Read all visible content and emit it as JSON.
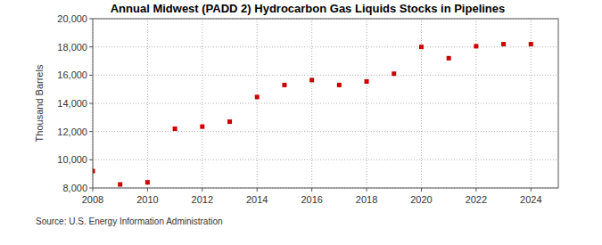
{
  "chart_data": {
    "type": "scatter",
    "title": "Annual Midwest (PADD 2) Hydrocarbon Gas Liquids Stocks in Pipelines",
    "y_label": "Thousand Barrels",
    "source": "Source: U.S. Energy Information Administration",
    "x": [
      2008,
      2009,
      2010,
      2011,
      2012,
      2013,
      2014,
      2015,
      2016,
      2017,
      2018,
      2019,
      2020,
      2021,
      2022,
      2023,
      2024
    ],
    "values": [
      9200,
      8250,
      8400,
      12200,
      12350,
      12700,
      14450,
      15300,
      15650,
      15300,
      15550,
      16100,
      18000,
      17200,
      18050,
      18200,
      18200
    ],
    "color": "#cc0000",
    "marker": "square",
    "xlim": [
      2008,
      2025
    ],
    "xticks": [
      2008,
      2010,
      2012,
      2014,
      2016,
      2018,
      2020,
      2022,
      2024
    ],
    "ylim": [
      8000,
      20000
    ],
    "yticks": [
      {
        "value": 8000,
        "label": "8,000"
      },
      {
        "value": 10000,
        "label": "10,000"
      },
      {
        "value": 12000,
        "label": "12,000"
      },
      {
        "value": 14000,
        "label": "14,000"
      },
      {
        "value": 16000,
        "label": "16,000"
      },
      {
        "value": 18000,
        "label": "18,000"
      },
      {
        "value": 20000,
        "label": "20,000"
      }
    ],
    "grid": true
  }
}
